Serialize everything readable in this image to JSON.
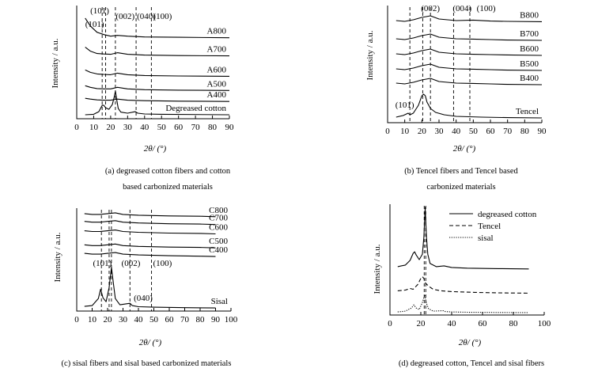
{
  "chart_data": [
    {
      "type": "line",
      "panel": "a",
      "caption": [
        "(a) degreased cotton fibers and cotton",
        "based carbonized materials"
      ],
      "xlabel": "2θ/ (°)",
      "ylabel": "Intensity / a.u.",
      "xlim": [
        0,
        90
      ],
      "x_ticks": [
        "0",
        "10",
        "20",
        "30",
        "40",
        "50",
        "60",
        "70",
        "80",
        "90"
      ],
      "grid": false,
      "series": [
        {
          "name": "A800",
          "x": [
            5,
            8,
            12,
            16,
            20,
            24,
            30,
            40,
            60,
            90
          ],
          "y": [
            6.1,
            5.6,
            5.2,
            5.05,
            4.95,
            5.0,
            4.95,
            4.9,
            4.88,
            4.85
          ]
        },
        {
          "name": "A700",
          "x": [
            5,
            8,
            12,
            16,
            20,
            24,
            30,
            40,
            60,
            90
          ],
          "y": [
            4.25,
            4.0,
            3.85,
            3.82,
            3.8,
            3.9,
            3.8,
            3.75,
            3.72,
            3.7
          ]
        },
        {
          "name": "A600",
          "x": [
            5,
            8,
            12,
            16,
            20,
            24,
            30,
            40,
            60,
            90
          ],
          "y": [
            2.8,
            2.65,
            2.55,
            2.52,
            2.5,
            2.6,
            2.5,
            2.45,
            2.42,
            2.4
          ]
        },
        {
          "name": "A500",
          "x": [
            5,
            8,
            12,
            16,
            20,
            24,
            30,
            40,
            60,
            90
          ],
          "y": [
            1.8,
            1.7,
            1.62,
            1.6,
            1.6,
            1.7,
            1.6,
            1.55,
            1.52,
            1.5
          ]
        },
        {
          "name": "A400",
          "x": [
            5,
            8,
            12,
            16,
            20,
            24,
            30,
            40,
            60,
            90
          ],
          "y": [
            1.0,
            0.95,
            0.9,
            0.88,
            0.88,
            0.95,
            0.88,
            0.85,
            0.82,
            0.8
          ]
        },
        {
          "name": "Degreased cotton",
          "x": [
            5,
            10,
            13,
            15,
            16,
            17,
            19,
            21,
            22,
            22.8,
            23.6,
            24.5,
            26,
            30,
            34.5,
            36,
            40,
            50,
            90
          ],
          "y": [
            -0.05,
            -0.02,
            0.15,
            0.55,
            0.55,
            0.4,
            0.3,
            0.6,
            1.05,
            1.45,
            0.9,
            0.35,
            0.12,
            0.05,
            0.15,
            0.05,
            0,
            -0.02,
            -0.05
          ]
        }
      ],
      "dashed_lines_x": [
        15,
        17,
        22.8,
        35,
        44
      ],
      "annotations": [
        {
          "text": "(101)",
          "x": 8,
          "y": 6.4
        },
        {
          "text": "(101)",
          "x": 5,
          "y": 5.55
        },
        {
          "text": "(002)",
          "x": 23,
          "y": 6.05
        },
        {
          "text": "(040)",
          "x": 35.5,
          "y": 6.05
        },
        {
          "text": "(100)",
          "x": 45,
          "y": 6.05
        }
      ]
    },
    {
      "type": "line",
      "panel": "b",
      "caption": [
        "(b) Tencel fibers and Tencel based",
        "carbonized materials"
      ],
      "xlabel": "2θ/ (°)",
      "ylabel": "Intensity / a.u.",
      "xlim": [
        0,
        90
      ],
      "x_ticks": [
        "0",
        "10",
        "20",
        "30",
        "40",
        "50",
        "60",
        "70",
        "80",
        "90"
      ],
      "grid": false,
      "series": [
        {
          "name": "B800",
          "x": [
            5,
            10,
            15,
            20,
            25,
            30,
            40,
            50,
            60,
            70,
            90
          ],
          "y": [
            6.25,
            6.2,
            6.3,
            6.45,
            6.55,
            6.35,
            6.25,
            6.28,
            6.22,
            6.2,
            6.18
          ]
        },
        {
          "name": "B700",
          "x": [
            5,
            10,
            15,
            20,
            25,
            30,
            40,
            50,
            60,
            70,
            90
          ],
          "y": [
            5.1,
            5.05,
            5.15,
            5.3,
            5.4,
            5.2,
            5.1,
            5.08,
            5.05,
            5.02,
            5.0
          ]
        },
        {
          "name": "B600",
          "x": [
            5,
            10,
            15,
            20,
            25,
            30,
            40,
            50,
            60,
            70,
            90
          ],
          "y": [
            4.15,
            4.1,
            4.2,
            4.35,
            4.45,
            4.25,
            4.15,
            4.12,
            4.1,
            4.08,
            4.05
          ]
        },
        {
          "name": "B500",
          "x": [
            5,
            10,
            15,
            20,
            25,
            30,
            40,
            50,
            60,
            70,
            90
          ],
          "y": [
            3.2,
            3.15,
            3.25,
            3.4,
            3.5,
            3.3,
            3.2,
            3.18,
            3.15,
            3.12,
            3.1
          ]
        },
        {
          "name": "B400",
          "x": [
            5,
            10,
            15,
            20,
            25,
            30,
            40,
            50,
            60,
            70,
            90
          ],
          "y": [
            2.3,
            2.25,
            2.35,
            2.5,
            2.6,
            2.4,
            2.3,
            2.28,
            2.25,
            2.22,
            2.2
          ]
        },
        {
          "name": "Tencel",
          "x": [
            5,
            9,
            12,
            13,
            15,
            18,
            20,
            21,
            22,
            23,
            25,
            28,
            33,
            40,
            55,
            70,
            90
          ],
          "y": [
            0.15,
            0.25,
            0.4,
            0.3,
            0.4,
            0.9,
            1.5,
            1.6,
            1.5,
            1.1,
            0.7,
            0.45,
            0.3,
            0.2,
            0.15,
            0.12,
            0.1
          ]
        }
      ],
      "dashed_lines_x": [
        13,
        20.5,
        25,
        38.5,
        48
      ],
      "annotations": [
        {
          "text": "(002)",
          "x": 19.5,
          "y": 6.85
        },
        {
          "text": "(004)",
          "x": 38,
          "y": 6.85
        },
        {
          "text": "(100)",
          "x": 52,
          "y": 6.85
        },
        {
          "text": "(101)",
          "x": 4.5,
          "y": 0.75
        }
      ]
    },
    {
      "type": "line",
      "panel": "c",
      "caption": [
        "(c) sisal fibers and sisal based carbonized materials"
      ],
      "xlabel": "2θ/ (°)",
      "ylabel": "Intensity / a.u.",
      "xlim": [
        0,
        100
      ],
      "x_ticks": [
        "0",
        "10",
        "20",
        "30",
        "40",
        "50",
        "60",
        "70",
        "80",
        "90",
        "100"
      ],
      "grid": false,
      "series": [
        {
          "name": "C800",
          "x": [
            5,
            10,
            15,
            20,
            25,
            30,
            40,
            60,
            80,
            90
          ],
          "y": [
            6.45,
            6.4,
            6.4,
            6.45,
            6.5,
            6.4,
            6.35,
            6.3,
            6.28,
            6.25
          ]
        },
        {
          "name": "C700",
          "x": [
            5,
            10,
            15,
            20,
            25,
            30,
            40,
            60,
            80,
            90
          ],
          "y": [
            5.95,
            5.9,
            5.9,
            5.95,
            6.0,
            5.9,
            5.85,
            5.8,
            5.78,
            5.75
          ]
        },
        {
          "name": "C600",
          "x": [
            5,
            10,
            15,
            20,
            25,
            30,
            40,
            60,
            80,
            90
          ],
          "y": [
            5.35,
            5.3,
            5.3,
            5.35,
            5.4,
            5.3,
            5.25,
            5.2,
            5.18,
            5.15
          ]
        },
        {
          "name": "C500",
          "x": [
            5,
            10,
            15,
            20,
            25,
            30,
            40,
            60,
            80,
            90
          ],
          "y": [
            4.45,
            4.4,
            4.4,
            4.45,
            4.5,
            4.4,
            4.35,
            4.3,
            4.28,
            4.25
          ]
        },
        {
          "name": "C400",
          "x": [
            5,
            10,
            15,
            20,
            25,
            30,
            40,
            60,
            80,
            90
          ],
          "y": [
            3.9,
            3.85,
            3.85,
            3.9,
            3.95,
            3.85,
            3.8,
            3.75,
            3.72,
            3.7
          ]
        },
        {
          "name": "Sisal",
          "x": [
            5,
            10,
            14,
            15.5,
            17,
            19,
            21,
            22.5,
            23.5,
            25,
            28,
            34.5,
            36,
            40,
            50,
            70,
            90
          ],
          "y": [
            0.5,
            0.55,
            1.0,
            1.6,
            1.05,
            0.8,
            1.7,
            3.0,
            2.2,
            1.0,
            0.6,
            0.7,
            0.55,
            0.48,
            0.45,
            0.42,
            0.4
          ]
        }
      ],
      "dashed_lines_x": [
        16,
        21,
        22.5,
        34.5,
        48.5
      ],
      "annotations": [
        {
          "text": "(101)",
          "x": 10.5,
          "y": 3.1
        },
        {
          "text": "(002)",
          "x": 29,
          "y": 3.1
        },
        {
          "text": "(100)",
          "x": 49.5,
          "y": 3.1
        },
        {
          "text": "(040)",
          "x": 37,
          "y": 0.85
        }
      ]
    },
    {
      "type": "line",
      "panel": "d",
      "caption": [
        "(d) degreased cotton, Tencel and sisal fibers"
      ],
      "xlabel": "2θ/ (°)",
      "ylabel": "Intensity / a.u.",
      "xlim": [
        0,
        100
      ],
      "x_ticks": [
        "0",
        "20",
        "40",
        "60",
        "80",
        "100"
      ],
      "grid": false,
      "legend": "top-right",
      "series": [
        {
          "name": "degreased cotton",
          "style": "solid",
          "x": [
            5,
            10,
            13,
            15,
            16,
            17,
            19,
            21,
            22,
            22.8,
            23.6,
            24.5,
            26,
            30,
            35,
            40,
            50,
            70,
            90
          ],
          "y": [
            3.1,
            3.2,
            3.5,
            3.95,
            4.05,
            3.85,
            3.55,
            3.9,
            5.0,
            6.9,
            5.1,
            3.9,
            3.3,
            3.1,
            3.15,
            3.05,
            3.0,
            2.97,
            2.95
          ]
        },
        {
          "name": "Tencel",
          "style": "dashed",
          "x": [
            5,
            10,
            13,
            15,
            18,
            20,
            21,
            22,
            23,
            25,
            28,
            33,
            40,
            55,
            70,
            90
          ],
          "y": [
            1.55,
            1.6,
            1.7,
            1.65,
            1.95,
            2.35,
            2.45,
            2.35,
            2.05,
            1.85,
            1.65,
            1.55,
            1.5,
            1.45,
            1.42,
            1.4
          ]
        },
        {
          "name": "sisal",
          "style": "dotted",
          "x": [
            5,
            10,
            14,
            15.5,
            17,
            19,
            21,
            22.5,
            23.5,
            25,
            28,
            34.5,
            36,
            40,
            50,
            70,
            90
          ],
          "y": [
            0.2,
            0.25,
            0.45,
            0.65,
            0.45,
            0.35,
            0.8,
            1.3,
            0.8,
            0.4,
            0.25,
            0.28,
            0.22,
            0.2,
            0.18,
            0.16,
            0.15
          ]
        }
      ],
      "dashed_lines_x": [
        22.2,
        23.2
      ]
    }
  ]
}
